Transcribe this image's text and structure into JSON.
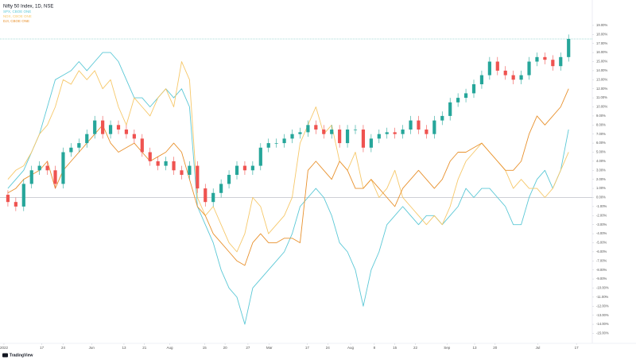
{
  "chart_data": {
    "type": "candlestick",
    "title": "Nifty 50 Index, 1D, NSE",
    "footer": "TradingView",
    "ylim": [
      -16.1,
      21.8
    ],
    "xlim": [
      -1,
      74
    ],
    "zero_line": true,
    "up_color": "#26a69a",
    "down_color": "#ef5350",
    "yticks": [
      {
        "value": -15,
        "label": "-15.00%"
      },
      {
        "value": -14,
        "label": "-14.00%"
      },
      {
        "value": -13,
        "label": "-13.00%"
      },
      {
        "value": -12,
        "label": "-12.00%"
      },
      {
        "value": -11,
        "label": "-11.00%"
      },
      {
        "value": -10,
        "label": "-10.00%"
      },
      {
        "value": -9,
        "label": "-9.00%"
      },
      {
        "value": -8,
        "label": "-8.00%"
      },
      {
        "value": -7,
        "label": "-7.00%"
      },
      {
        "value": -6,
        "label": "-6.00%"
      },
      {
        "value": -5,
        "label": "-5.00%"
      },
      {
        "value": -4,
        "label": "-4.00%"
      },
      {
        "value": -3,
        "label": "-3.00%"
      },
      {
        "value": -2,
        "label": "-2.00%"
      },
      {
        "value": -1,
        "label": "-1.00%"
      },
      {
        "value": 0,
        "label": "0.00%"
      },
      {
        "value": 1,
        "label": "1.00%"
      },
      {
        "value": 2,
        "label": "2.00%"
      },
      {
        "value": 3,
        "label": "3.00%"
      },
      {
        "value": 4,
        "label": "4.00%"
      },
      {
        "value": 5,
        "label": "5.00%"
      },
      {
        "value": 6,
        "label": "6.00%"
      },
      {
        "value": 7,
        "label": "7.00%"
      },
      {
        "value": 8,
        "label": "8.00%"
      },
      {
        "value": 9,
        "label": "9.00%"
      },
      {
        "value": 10,
        "label": "10.00%"
      },
      {
        "value": 11,
        "label": "11.00%"
      },
      {
        "value": 12,
        "label": "12.00%"
      },
      {
        "value": 13,
        "label": "13.00%"
      },
      {
        "value": 14,
        "label": "14.00%"
      },
      {
        "value": 15,
        "label": "15.00%"
      },
      {
        "value": 16,
        "label": "16.00%"
      },
      {
        "value": 17,
        "label": "17.00%"
      },
      {
        "value": 18,
        "label": "18.00%"
      },
      {
        "value": 19,
        "label": "19.00%"
      }
    ],
    "xticks": [
      {
        "value": -0.5,
        "label": "2022"
      },
      {
        "value": 4.3,
        "label": "17"
      },
      {
        "value": 7,
        "label": "24"
      },
      {
        "value": 10.6,
        "label": "Jun"
      },
      {
        "value": 14.7,
        "label": "13"
      },
      {
        "value": 17.3,
        "label": "21"
      },
      {
        "value": 20.5,
        "label": "Aug"
      },
      {
        "value": 24.9,
        "label": "15"
      },
      {
        "value": 27.5,
        "label": "20"
      },
      {
        "value": 30.4,
        "label": "27"
      },
      {
        "value": 33.1,
        "label": "Mar"
      },
      {
        "value": 37.9,
        "label": "17"
      },
      {
        "value": 40.5,
        "label": "24"
      },
      {
        "value": 43.4,
        "label": "Aug"
      },
      {
        "value": 46.4,
        "label": "8"
      },
      {
        "value": 49,
        "label": "15"
      },
      {
        "value": 51.6,
        "label": "22"
      },
      {
        "value": 55.6,
        "label": "Sep"
      },
      {
        "value": 59.1,
        "label": "13"
      },
      {
        "value": 61.7,
        "label": "20"
      },
      {
        "value": 67.1,
        "label": "Jul"
      },
      {
        "value": 72,
        "label": "17"
      }
    ],
    "candles": {
      "open": [
        0.3,
        -0.5,
        -1,
        1.5,
        3,
        3.5,
        3,
        1.5,
        5,
        5.5,
        6,
        7,
        8.5,
        7,
        8,
        7.5,
        7,
        6.5,
        5,
        4,
        3.5,
        4,
        3,
        2.5,
        3.5,
        1,
        -0.5,
        0.5,
        1.5,
        2.5,
        3.5,
        3,
        3.5,
        5.5,
        6,
        6,
        6.5,
        7,
        7.2,
        8,
        7.5,
        7,
        7.5,
        6,
        7.5,
        7.5,
        5.5,
        6.5,
        7,
        7.2,
        7,
        7.5,
        8.5,
        7.5,
        7,
        8.5,
        9,
        10.5,
        11,
        11.5,
        12.5,
        13.5,
        15,
        14,
        13.5,
        13,
        13.5,
        15,
        15.5,
        15.2,
        14.5,
        15.5
      ],
      "high": [
        0.8,
        0,
        2,
        3.5,
        4,
        4,
        3.5,
        5.5,
        6,
        6.5,
        7.5,
        9,
        9,
        8.5,
        8.5,
        8,
        7.5,
        7,
        5.5,
        4.5,
        4.5,
        4.5,
        3.5,
        4,
        4,
        1.5,
        1,
        2,
        3,
        4,
        4,
        4,
        6,
        6.5,
        6.5,
        7,
        7.5,
        7.7,
        8.5,
        8.5,
        8,
        8,
        8,
        8,
        8,
        8,
        7,
        7.5,
        7.7,
        7.7,
        8,
        9,
        9,
        8,
        9,
        9.5,
        11,
        11.5,
        12,
        13,
        14,
        15.5,
        15.5,
        14.5,
        14,
        14,
        15.5,
        16,
        16,
        15.7,
        16,
        18
      ],
      "low": [
        -1,
        -1.5,
        -1.5,
        1,
        2.5,
        2.5,
        1,
        1,
        4.5,
        5,
        5.5,
        6.5,
        6.5,
        6.5,
        7,
        6.5,
        6,
        4.5,
        3.5,
        3,
        3,
        2.5,
        2,
        2,
        0.5,
        -1,
        -1,
        0,
        1,
        2,
        2.5,
        2.5,
        3,
        5,
        5.5,
        5.5,
        6,
        6.5,
        6.7,
        7,
        6.5,
        6.5,
        5.5,
        5.5,
        7,
        5,
        5,
        6,
        6.5,
        6.5,
        6.5,
        7,
        7,
        6.5,
        6.5,
        8,
        8.5,
        10,
        10.5,
        11,
        12,
        13,
        13.5,
        13,
        12.5,
        12.5,
        13,
        14.5,
        14.7,
        14,
        14,
        15
      ],
      "close": [
        -0.5,
        -1,
        1.5,
        3,
        3.5,
        3,
        1.5,
        5,
        5.5,
        6,
        7,
        8.5,
        7,
        8,
        7.5,
        7,
        6.5,
        5,
        4,
        3.5,
        4,
        3,
        2.5,
        3.5,
        1,
        -0.5,
        0.5,
        1.5,
        2.5,
        3.5,
        3,
        3.5,
        5.5,
        6,
        6,
        6.5,
        7,
        7.2,
        8,
        7.5,
        7,
        7.5,
        6,
        7.5,
        7.5,
        5.5,
        6.5,
        7,
        7.2,
        7,
        7.5,
        8.5,
        7.5,
        7,
        8.5,
        9,
        10.5,
        11,
        11.5,
        12.5,
        13.5,
        15,
        14,
        13.5,
        13,
        13.5,
        15,
        15.5,
        15.2,
        14.5,
        15.5,
        17.5
      ]
    },
    "series": [
      {
        "name": "SPX, CBOE ONE",
        "color": "#5bc8d6",
        "values": [
          1,
          2,
          3,
          5,
          7,
          10,
          13,
          13.5,
          14,
          15,
          14,
          15,
          16,
          16,
          15,
          13,
          11,
          11,
          10,
          11,
          12,
          11,
          12,
          10,
          -1,
          -3,
          -5,
          -8,
          -10,
          -11,
          -14,
          -10,
          -9,
          -8,
          -7,
          -6,
          -4,
          -1,
          0,
          1,
          0,
          -2,
          -5,
          -6,
          -8,
          -12,
          -8,
          -6,
          -3,
          -2,
          -1,
          -2,
          -3,
          -2,
          -2,
          -3,
          -2,
          -1,
          1,
          0,
          1,
          1,
          0,
          -1,
          -3,
          -3,
          0,
          2,
          3,
          1,
          3,
          7.5
        ]
      },
      {
        "name": "NDX, CBOE ONE",
        "color": "#f6c86a",
        "values": [
          2,
          3,
          3.5,
          5,
          7,
          8,
          10,
          13,
          12.5,
          14,
          13,
          14,
          12,
          13,
          10,
          8,
          11,
          10,
          9,
          11,
          12,
          10,
          15,
          13,
          0,
          -2,
          -1,
          -3,
          -5,
          -6,
          -4,
          0,
          -1,
          -4,
          -3,
          -2,
          0,
          6,
          8,
          10,
          7,
          8,
          4,
          3,
          5,
          1,
          2,
          0,
          1,
          3,
          0,
          -1,
          -2,
          -3,
          -2,
          -3,
          -1,
          2,
          4,
          5,
          6,
          5,
          4,
          3,
          1,
          2,
          1,
          1,
          0,
          1,
          3,
          5
        ]
      },
      {
        "name": "DJI, CBOE ONE",
        "color": "#e8912d",
        "values": [
          0.5,
          1,
          2,
          2.5,
          3,
          4,
          1,
          3,
          4,
          5,
          6,
          7,
          8,
          6,
          5,
          5.5,
          6,
          5,
          4,
          4.5,
          5,
          6,
          5,
          2,
          -1,
          -2,
          -4,
          -5,
          -6,
          -7,
          -7.5,
          -5,
          -4,
          -5,
          -5,
          -4.5,
          -4.5,
          -5,
          3,
          4,
          3,
          2,
          4,
          3,
          1,
          1,
          2,
          1,
          0,
          -1,
          1,
          2,
          3,
          2,
          1,
          2,
          4,
          5,
          5,
          5.5,
          6,
          5,
          4,
          3,
          3,
          4,
          7,
          9,
          8,
          9,
          10,
          12
        ]
      }
    ]
  }
}
